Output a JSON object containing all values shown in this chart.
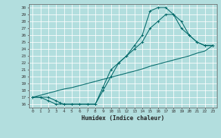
{
  "xlabel": "Humidex (Indice chaleur)",
  "bg_color": "#b2dede",
  "line_color": "#006868",
  "grid_color": "#ffffff",
  "xlim": [
    -0.5,
    23.5
  ],
  "ylim": [
    15.5,
    30.5
  ],
  "xticks": [
    0,
    1,
    2,
    3,
    4,
    5,
    6,
    7,
    8,
    9,
    10,
    11,
    12,
    13,
    14,
    15,
    16,
    17,
    18,
    19,
    20,
    21,
    22,
    23
  ],
  "yticks": [
    16,
    17,
    18,
    19,
    20,
    21,
    22,
    23,
    24,
    25,
    26,
    27,
    28,
    29,
    30
  ],
  "curve1_x": [
    0,
    1,
    2,
    3,
    3.5,
    4,
    5,
    6,
    7,
    8,
    9,
    10,
    11,
    12,
    13,
    14,
    15,
    16,
    17,
    18,
    19,
    20,
    21,
    22,
    23
  ],
  "curve1_y": [
    17,
    17,
    17,
    16.5,
    16.2,
    16,
    16,
    16,
    16,
    16,
    18,
    20,
    22,
    23,
    24,
    25,
    27,
    28,
    29,
    29,
    28,
    26,
    25,
    24.5,
    24.5
  ],
  "curve2_x": [
    0,
    1,
    2,
    3,
    4,
    5,
    6,
    7,
    8,
    9,
    10,
    11,
    12,
    13,
    14,
    15,
    16,
    17,
    18,
    19,
    20,
    21,
    22,
    23
  ],
  "curve2_y": [
    17,
    17,
    16.5,
    16,
    16,
    16,
    16,
    16,
    16,
    18.5,
    21,
    22,
    23,
    24.5,
    26,
    29.5,
    30,
    30,
    29,
    27,
    26,
    25,
    24.5,
    24.5
  ],
  "curve3_x": [
    0,
    1,
    2,
    3,
    4,
    5,
    6,
    7,
    8,
    9,
    10,
    11,
    12,
    13,
    14,
    15,
    16,
    17,
    18,
    19,
    20,
    21,
    22,
    23
  ],
  "curve3_y": [
    17,
    17.3,
    17.6,
    17.9,
    18.2,
    18.4,
    18.7,
    19.0,
    19.3,
    19.6,
    19.9,
    20.2,
    20.5,
    20.8,
    21.1,
    21.5,
    21.8,
    22.1,
    22.4,
    22.7,
    23.0,
    23.4,
    23.7,
    24.5
  ]
}
